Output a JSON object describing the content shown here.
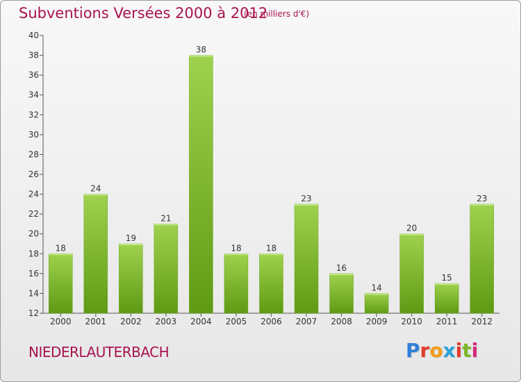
{
  "title": "Subventions Versées 2000 à 2012",
  "subtitle": "(en milliers d'€)",
  "commune": "NIEDERLAUTERBACH",
  "logo": {
    "letters": [
      "P",
      "r",
      "o",
      "x",
      "i",
      "t",
      "i"
    ],
    "colors": [
      "#2f7fd8",
      "#e23b2b",
      "#f29a1a",
      "#2aa3d9",
      "#e23b2b",
      "#7ab829",
      "#d8287d"
    ]
  },
  "colors": {
    "bar_top": "#9fd24e",
    "bar_bottom": "#5f9a14",
    "title": "#a8124e",
    "axis": "#555555"
  },
  "chart_data": {
    "type": "bar",
    "title": "Subventions Versées 2000 à 2012",
    "subtitle": "(en milliers d'€)",
    "xlabel": "",
    "ylabel": "",
    "categories": [
      "2000",
      "2001",
      "2002",
      "2003",
      "2004",
      "2005",
      "2006",
      "2007",
      "2008",
      "2009",
      "2010",
      "2011",
      "2012"
    ],
    "values": [
      18,
      24,
      19,
      21,
      38,
      18,
      18,
      23,
      16,
      14,
      20,
      15,
      23
    ],
    "ylim": [
      12,
      40
    ],
    "yticks": [
      12,
      14,
      16,
      18,
      20,
      22,
      24,
      26,
      28,
      30,
      32,
      34,
      36,
      38,
      40
    ],
    "grid": false,
    "data_labels": true
  }
}
